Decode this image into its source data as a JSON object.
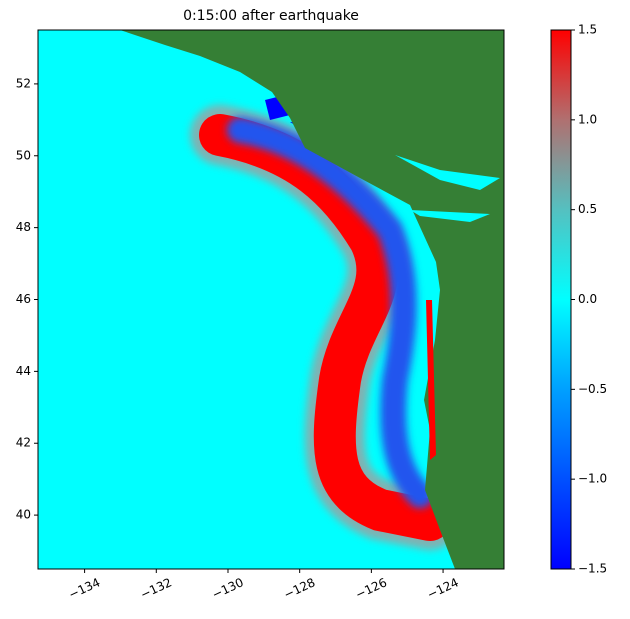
{
  "chart_data": {
    "type": "map",
    "title": "0:15:00 after earthquake",
    "xlim": [
      -135.3,
      -122.3
    ],
    "ylim": [
      38.5,
      53.5
    ],
    "xticks": [
      {
        "value": -134,
        "label": "−134"
      },
      {
        "value": -132,
        "label": "−132"
      },
      {
        "value": -130,
        "label": "−130"
      },
      {
        "value": -128,
        "label": "−128"
      },
      {
        "value": -126,
        "label": "−126"
      },
      {
        "value": -124,
        "label": "−124"
      }
    ],
    "yticks": [
      40,
      42,
      44,
      46,
      48,
      50,
      52
    ],
    "colorbar": {
      "clim": [
        -1.5,
        1.5
      ],
      "ticks": [
        {
          "value": -1.5,
          "label": "−1.5"
        },
        {
          "value": -1,
          "label": "−1.0"
        },
        {
          "value": -0.5,
          "label": "−0.5"
        },
        {
          "value": 0,
          "label": "0.0"
        },
        {
          "value": 0.5,
          "label": "0.5"
        },
        {
          "value": 1,
          "label": "1.0"
        },
        {
          "value": 1.5,
          "label": "1.5"
        }
      ],
      "colormap": [
        "#0000ff",
        "#0050ff",
        "#00a0ff",
        "#00ffff",
        "#55c0c0",
        "#b07070",
        "#ff0000"
      ]
    }
  }
}
